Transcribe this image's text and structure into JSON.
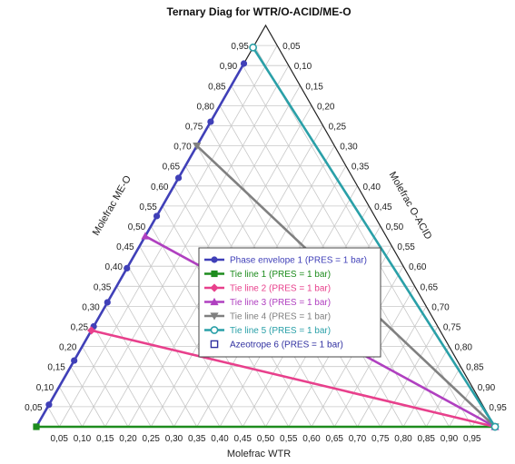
{
  "chart_data": {
    "type": "ternary",
    "title": "Ternary Diag for WTR/O-ACID/ME-O",
    "axes": {
      "bottom": "Molefrac WTR",
      "left": "Molefrac ME-O",
      "right": "Molefrac O-ACID"
    },
    "ticks": [
      "0,05",
      "0,10",
      "0,15",
      "0,20",
      "0,25",
      "0,30",
      "0,35",
      "0,40",
      "0,45",
      "0,50",
      "0,55",
      "0,60",
      "0,65",
      "0,70",
      "0,75",
      "0,80",
      "0,85",
      "0,90",
      "0,95"
    ],
    "legend_position": "center-right",
    "series": [
      {
        "name": "Phase envelope 1 (PRES = 1  bar)",
        "color": "#4040b8",
        "marker": "circle",
        "points": [
          [
            0.0,
            0.0,
            1.0
          ],
          [
            0.0,
            0.905,
            0.095
          ],
          [
            0.0,
            0.76,
            0.24
          ],
          [
            0.0,
            0.62,
            0.38
          ],
          [
            0.0,
            0.525,
            0.475
          ],
          [
            0.0,
            0.395,
            0.605
          ],
          [
            0.0,
            0.31,
            0.69
          ],
          [
            0.0,
            0.25,
            0.75
          ],
          [
            0.0,
            0.165,
            0.835
          ],
          [
            0.0,
            0.055,
            0.945
          ],
          [
            0.0,
            0.0,
            1.0
          ]
        ]
      },
      {
        "name": "Tie line 1 (PRES = 1  bar)",
        "color": "#1e8c1e",
        "marker": "square",
        "points": [
          [
            0.0,
            0.0,
            1.0
          ],
          [
            1.0,
            0.0,
            0.0
          ]
        ]
      },
      {
        "name": "Tie line 2 (PRES = 1  bar)",
        "color": "#e8408c",
        "marker": "diamond",
        "points": [
          [
            0.0,
            0.24,
            0.76
          ],
          [
            1.0,
            0.0,
            0.0
          ]
        ]
      },
      {
        "name": "Tie line 3 (PRES = 1  bar)",
        "color": "#b040c0",
        "marker": "triangle-up",
        "points": [
          [
            0.0,
            0.475,
            0.525
          ],
          [
            1.0,
            0.0,
            0.0
          ]
        ]
      },
      {
        "name": "Tie line 4 (PRES = 1  bar)",
        "color": "#808080",
        "marker": "triangle-down",
        "points": [
          [
            0.0,
            0.7,
            0.3
          ],
          [
            1.0,
            0.0,
            0.0
          ]
        ]
      },
      {
        "name": "Tie line 5 (PRES = 1  bar)",
        "color": "#2aa0a8",
        "marker": "open-circle",
        "points": [
          [
            0.0,
            0.945,
            0.055
          ],
          [
            1.0,
            0.0,
            0.0
          ]
        ]
      },
      {
        "name": "Azeotrope 6 (PRES = 1  bar)",
        "color": "#3030a0",
        "marker": "open-square",
        "points": []
      }
    ]
  }
}
